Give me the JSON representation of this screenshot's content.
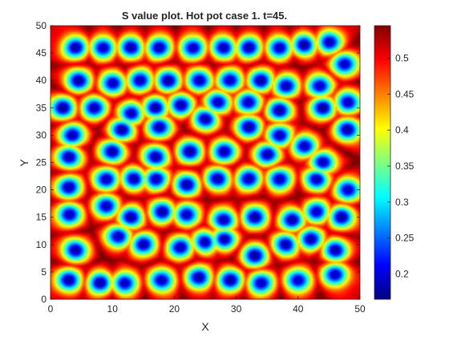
{
  "chart_data": {
    "type": "heatmap",
    "title": "S value plot. Hot pot case 1. t=45.",
    "xlabel": "X",
    "ylabel": "Y",
    "xlim": [
      0,
      50
    ],
    "ylim": [
      0,
      50
    ],
    "xticks": [
      "0",
      "10",
      "20",
      "30",
      "40",
      "50"
    ],
    "yticks": [
      "0",
      "5",
      "10",
      "15",
      "20",
      "25",
      "30",
      "35",
      "40",
      "45",
      "50"
    ],
    "colormap": "jet",
    "colorbar": {
      "range": [
        0.165,
        0.545
      ],
      "ticks": [
        "0.2",
        "0.25",
        "0.3",
        "0.35",
        "0.4",
        "0.45",
        "0.5"
      ]
    },
    "background_value": 0.51,
    "low_value": 0.175,
    "spot_radius": 1.5,
    "spots": [
      [
        4,
        46
      ],
      [
        8.5,
        46
      ],
      [
        13,
        46
      ],
      [
        17.5,
        46
      ],
      [
        23,
        46
      ],
      [
        28,
        46
      ],
      [
        32,
        46
      ],
      [
        37,
        46
      ],
      [
        41,
        46.5
      ],
      [
        45,
        47
      ],
      [
        47.5,
        43
      ],
      [
        4.5,
        40
      ],
      [
        10,
        39.5
      ],
      [
        14.5,
        40
      ],
      [
        19,
        40
      ],
      [
        24,
        40
      ],
      [
        29,
        40
      ],
      [
        34,
        40
      ],
      [
        38,
        39
      ],
      [
        43.5,
        39
      ],
      [
        2,
        35
      ],
      [
        7,
        35
      ],
      [
        13,
        34
      ],
      [
        17,
        35
      ],
      [
        21,
        35.5
      ],
      [
        27,
        36
      ],
      [
        32,
        36
      ],
      [
        37,
        34.5
      ],
      [
        44,
        35
      ],
      [
        48,
        36
      ],
      [
        3.5,
        30
      ],
      [
        11.5,
        31
      ],
      [
        17.5,
        31.5
      ],
      [
        25,
        33
      ],
      [
        32,
        31.5
      ],
      [
        37,
        30
      ],
      [
        48,
        31
      ],
      [
        3,
        26
      ],
      [
        10,
        27
      ],
      [
        17,
        26
      ],
      [
        22.5,
        27
      ],
      [
        28,
        27
      ],
      [
        35,
        26.5
      ],
      [
        41,
        28
      ],
      [
        3,
        20.5
      ],
      [
        9,
        22
      ],
      [
        13.5,
        22
      ],
      [
        17,
        22
      ],
      [
        22,
        21
      ],
      [
        27,
        22
      ],
      [
        32,
        22
      ],
      [
        37,
        22
      ],
      [
        43,
        22
      ],
      [
        48,
        20
      ],
      [
        44,
        25
      ],
      [
        3,
        15.5
      ],
      [
        9,
        17
      ],
      [
        13,
        15
      ],
      [
        18,
        16
      ],
      [
        22,
        15.5
      ],
      [
        28,
        14.5
      ],
      [
        33,
        15
      ],
      [
        39,
        14.5
      ],
      [
        43,
        16
      ],
      [
        47,
        15
      ],
      [
        4,
        9
      ],
      [
        11,
        11.5
      ],
      [
        15,
        10
      ],
      [
        21,
        9.5
      ],
      [
        25,
        10.5
      ],
      [
        28,
        11
      ],
      [
        33,
        8
      ],
      [
        38,
        10
      ],
      [
        42,
        11
      ],
      [
        46,
        9
      ],
      [
        3,
        3.5
      ],
      [
        8,
        3
      ],
      [
        12,
        3
      ],
      [
        18,
        3.5
      ],
      [
        24,
        4
      ],
      [
        29,
        3.5
      ],
      [
        34,
        3
      ],
      [
        40,
        3.5
      ],
      [
        46,
        4.5
      ]
    ]
  }
}
